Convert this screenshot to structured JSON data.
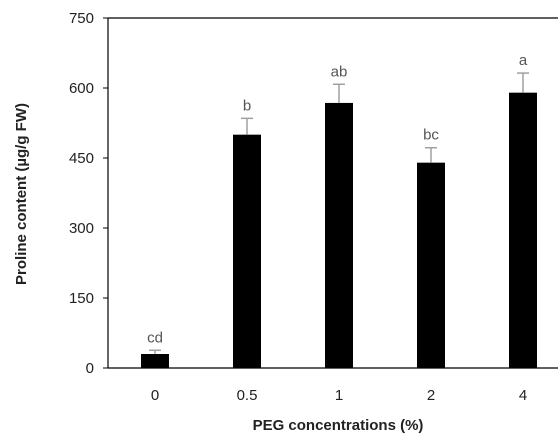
{
  "chart_data": {
    "type": "bar",
    "title": "",
    "xlabel": "PEG concentrations (%)",
    "ylabel": "Proline content (µg/g FW)",
    "categories": [
      "0",
      "0.5",
      "1",
      "2",
      "4"
    ],
    "series": [
      {
        "values": [
          30,
          500,
          568,
          440,
          590
        ],
        "errors": [
          8,
          35,
          40,
          32,
          42
        ],
        "labels": [
          "cd",
          "b",
          "ab",
          "bc",
          "a"
        ]
      }
    ],
    "ylim": [
      0,
      750
    ],
    "yticks": [
      "0",
      "150",
      "300",
      "450",
      "600",
      "750"
    ],
    "bar_color": "#000000",
    "error_color": "#a0a0a0",
    "grid": false,
    "legend": "none"
  }
}
